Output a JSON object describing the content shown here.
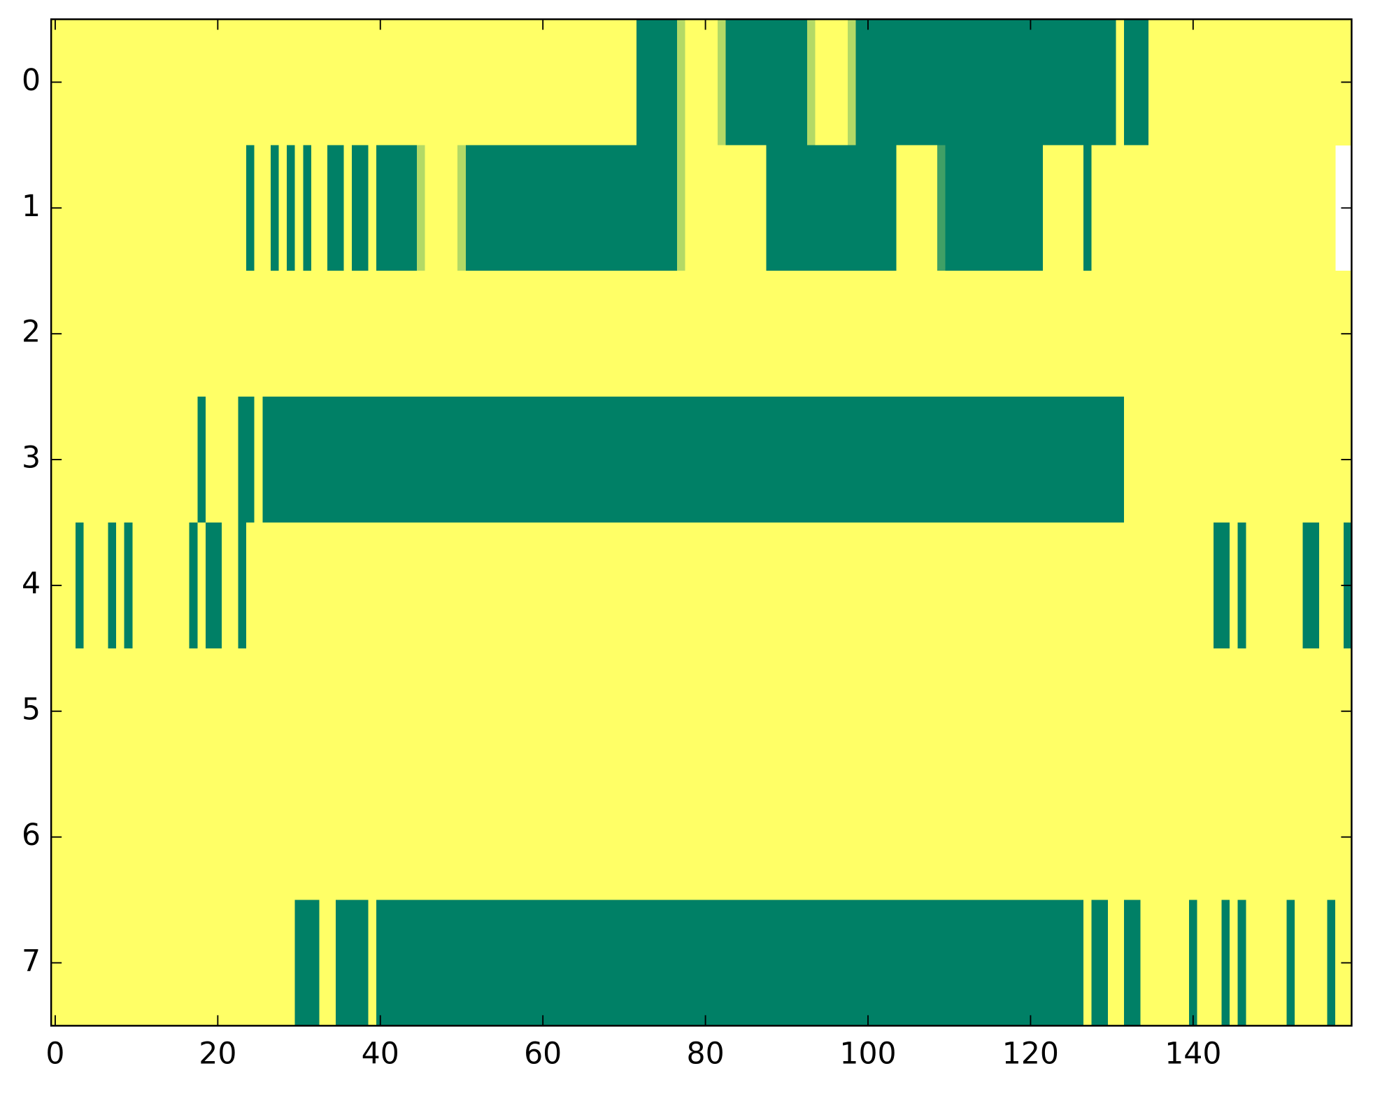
{
  "chart_data": {
    "type": "heatmap",
    "xlim": [
      -0.5,
      159.5
    ],
    "ylim": [
      7.5,
      -0.5
    ],
    "xticks": [
      0,
      20,
      40,
      60,
      80,
      100,
      120,
      140
    ],
    "yticks": [
      0,
      1,
      2,
      3,
      4,
      5,
      6,
      7
    ],
    "cmap": [
      "#ffff66",
      "#008066"
    ],
    "clim": [
      0,
      1
    ],
    "values": [
      [
        0,
        0,
        0,
        0,
        0,
        0,
        0,
        0,
        0,
        0,
        0,
        0,
        0,
        0,
        0,
        0,
        0,
        0,
        0,
        0,
        0,
        0,
        0,
        0,
        0,
        0,
        0,
        0,
        0,
        0,
        0,
        0,
        0,
        0,
        0,
        0,
        0,
        0,
        0,
        0,
        0,
        0,
        0,
        0,
        0,
        0,
        0,
        0,
        0,
        0,
        0,
        0,
        0,
        0,
        0,
        0,
        0,
        0,
        0,
        0,
        0,
        0,
        0,
        0,
        0,
        0,
        0,
        0,
        0,
        0,
        0,
        0,
        1,
        1,
        1,
        1,
        1,
        0.3,
        0,
        0,
        0,
        0,
        0.3,
        1,
        1,
        1,
        1,
        1,
        1,
        1,
        1,
        1,
        1,
        0.3,
        0,
        0,
        0,
        0,
        0.3,
        1,
        1,
        1,
        1,
        1,
        1,
        1,
        1,
        1,
        1,
        1,
        1,
        1,
        1,
        1,
        1,
        1,
        1,
        1,
        1,
        1,
        1,
        1,
        1,
        1,
        1,
        1,
        1,
        1,
        1,
        1,
        1,
        0,
        1,
        1,
        1,
        0,
        0,
        0,
        0,
        0,
        0,
        0,
        0,
        0,
        0,
        0,
        0,
        0,
        0,
        0,
        0,
        0,
        0,
        0,
        0,
        0,
        0,
        0,
        0,
        0
      ],
      [
        0,
        0,
        0,
        0,
        0,
        0,
        0,
        0,
        0,
        0,
        0,
        0,
        0,
        0,
        0,
        0,
        0,
        0,
        0,
        0,
        0,
        0,
        0,
        0,
        1,
        0,
        0,
        1,
        0,
        1,
        0,
        1,
        0,
        0,
        1,
        1,
        0,
        1,
        1,
        0,
        1,
        1,
        1,
        1,
        1,
        0.3,
        0,
        0,
        0,
        0,
        0.3,
        1,
        1,
        1,
        1,
        1,
        1,
        1,
        1,
        1,
        1,
        1,
        1,
        1,
        1,
        1,
        1,
        1,
        1,
        1,
        1,
        1,
        1,
        1,
        1,
        1,
        1,
        0.3,
        0,
        0,
        0,
        0,
        0,
        0,
        0,
        0,
        0,
        0,
        1,
        1,
        1,
        1,
        1,
        1,
        1,
        1,
        1,
        1,
        1,
        1,
        1,
        1,
        1,
        1,
        0,
        0,
        0,
        0,
        0,
        0.75,
        1,
        1,
        1,
        1,
        1,
        1,
        1,
        1,
        1,
        1,
        1,
        1,
        0,
        0,
        0,
        0,
        0,
        1,
        0,
        0,
        0,
        0,
        0,
        0,
        0,
        0,
        0,
        0,
        0,
        0,
        0,
        0,
        0,
        0,
        0,
        0,
        0,
        0,
        0,
        0,
        0,
        0,
        0,
        0,
        0,
        0,
        0,
        0
      ],
      [
        0,
        0,
        0,
        0,
        0,
        0,
        0,
        0,
        0,
        0,
        0,
        0,
        0,
        0,
        0,
        0,
        0,
        0,
        0,
        0,
        0,
        0,
        0,
        0,
        0,
        0,
        0,
        0,
        0,
        0,
        0,
        0,
        0,
        0,
        0,
        0,
        0,
        0,
        0,
        0,
        0,
        0,
        0,
        0,
        0,
        0,
        0,
        0,
        0,
        0,
        0,
        0,
        0,
        0,
        0,
        0,
        0,
        0,
        0,
        0,
        0,
        0,
        0,
        0,
        0,
        0,
        0,
        0,
        0,
        0,
        0,
        0,
        0,
        0,
        0,
        0,
        0,
        0,
        0,
        0,
        0,
        0,
        0,
        0,
        0,
        0,
        0,
        0,
        0,
        0,
        0,
        0,
        0,
        0,
        0,
        0,
        0,
        0,
        0,
        0,
        0,
        0,
        0,
        0,
        0,
        0,
        0,
        0,
        0,
        0,
        0,
        0,
        0,
        0,
        0,
        0,
        0,
        0,
        0,
        0,
        0,
        0,
        0,
        0,
        0,
        0,
        0,
        0,
        0,
        0,
        0,
        0,
        0,
        0,
        0,
        0,
        0,
        0,
        0,
        0,
        0,
        0,
        0,
        0,
        0,
        0,
        0,
        0,
        0,
        0,
        0,
        0,
        0,
        0,
        0,
        0,
        0,
        0,
        0,
        0
      ],
      [
        0,
        0,
        0,
        0,
        0,
        0,
        0,
        0,
        0,
        0,
        0,
        0,
        0,
        0,
        0,
        0,
        0,
        0,
        1,
        0,
        0,
        0,
        0,
        1,
        1,
        0,
        1,
        1,
        1,
        1,
        1,
        1,
        1,
        1,
        1,
        1,
        1,
        1,
        1,
        1,
        1,
        1,
        1,
        1,
        1,
        1,
        1,
        1,
        1,
        1,
        1,
        1,
        1,
        1,
        1,
        1,
        1,
        1,
        1,
        1,
        1,
        1,
        1,
        1,
        1,
        1,
        1,
        1,
        1,
        1,
        1,
        1,
        1,
        1,
        1,
        1,
        1,
        1,
        1,
        1,
        1,
        1,
        1,
        1,
        1,
        1,
        1,
        1,
        1,
        1,
        1,
        1,
        1,
        1,
        1,
        1,
        1,
        1,
        1,
        1,
        1,
        1,
        1,
        1,
        1,
        1,
        1,
        1,
        1,
        1,
        1,
        1,
        1,
        1,
        1,
        1,
        1,
        1,
        1,
        1,
        1,
        1,
        1,
        1,
        1,
        1,
        1,
        1,
        1,
        1,
        1,
        1,
        0,
        0,
        0,
        0,
        0,
        0,
        0,
        0,
        0,
        0,
        0,
        0,
        0,
        0,
        0,
        0,
        0,
        0,
        0,
        0,
        0,
        0,
        0,
        0,
        0,
        0,
        0,
        0
      ],
      [
        0,
        0,
        0,
        1,
        0,
        0,
        0,
        1,
        0,
        1,
        0,
        0,
        0,
        0,
        0,
        0,
        0,
        1,
        0,
        1,
        1,
        0,
        0,
        1,
        0,
        0,
        0,
        0,
        0,
        0,
        0,
        0,
        0,
        0,
        0,
        0,
        0,
        0,
        0,
        0,
        0,
        0,
        0,
        0,
        0,
        0,
        0,
        0,
        0,
        0,
        0,
        0,
        0,
        0,
        0,
        0,
        0,
        0,
        0,
        0,
        0,
        0,
        0,
        0,
        0,
        0,
        0,
        0,
        0,
        0,
        0,
        0,
        0,
        0,
        0,
        0,
        0,
        0,
        0,
        0,
        0,
        0,
        0,
        0,
        0,
        0,
        0,
        0,
        0,
        0,
        0,
        0,
        0,
        0,
        0,
        0,
        0,
        0,
        0,
        0,
        0,
        0,
        0,
        0,
        0,
        0,
        0,
        0,
        0,
        0,
        0,
        0,
        0,
        0,
        0,
        0,
        0,
        0,
        0,
        0,
        0,
        0,
        0,
        0,
        0,
        0,
        0,
        0,
        0,
        0,
        0,
        0,
        0,
        0,
        0,
        0,
        0,
        0,
        0,
        0,
        0,
        0,
        0,
        1,
        1,
        0,
        1,
        0,
        0,
        0,
        0,
        0,
        0,
        0,
        1,
        1,
        0,
        0,
        0,
        1
      ],
      [
        0,
        0,
        0,
        0,
        0,
        0,
        0,
        0,
        0,
        0,
        0,
        0,
        0,
        0,
        0,
        0,
        0,
        0,
        0,
        0,
        0,
        0,
        0,
        0,
        0,
        0,
        0,
        0,
        0,
        0,
        0,
        0,
        0,
        0,
        0,
        0,
        0,
        0,
        0,
        0,
        0,
        0,
        0,
        0,
        0,
        0,
        0,
        0,
        0,
        0,
        0,
        0,
        0,
        0,
        0,
        0,
        0,
        0,
        0,
        0,
        0,
        0,
        0,
        0,
        0,
        0,
        0,
        0,
        0,
        0,
        0,
        0,
        0,
        0,
        0,
        0,
        0,
        0,
        0,
        0,
        0,
        0,
        0,
        0,
        0,
        0,
        0,
        0,
        0,
        0,
        0,
        0,
        0,
        0,
        0,
        0,
        0,
        0,
        0,
        0,
        0,
        0,
        0,
        0,
        0,
        0,
        0,
        0,
        0,
        0,
        0,
        0,
        0,
        0,
        0,
        0,
        0,
        0,
        0,
        0,
        0,
        0,
        0,
        0,
        0,
        0,
        0,
        0,
        0,
        0,
        0,
        0,
        0,
        0,
        0,
        0,
        0,
        0,
        0,
        0,
        0,
        0,
        0,
        0,
        0,
        0,
        0,
        0,
        0,
        0,
        0,
        0,
        0,
        0,
        0,
        0,
        0,
        0,
        0,
        0
      ],
      [
        0,
        0,
        0,
        0,
        0,
        0,
        0,
        0,
        0,
        0,
        0,
        0,
        0,
        0,
        0,
        0,
        0,
        0,
        0,
        0,
        0,
        0,
        0,
        0,
        0,
        0,
        0,
        0,
        0,
        0,
        0,
        0,
        0,
        0,
        0,
        0,
        0,
        0,
        0,
        0,
        0,
        0,
        0,
        0,
        0,
        0,
        0,
        0,
        0,
        0,
        0,
        0,
        0,
        0,
        0,
        0,
        0,
        0,
        0,
        0,
        0,
        0,
        0,
        0,
        0,
        0,
        0,
        0,
        0,
        0,
        0,
        0,
        0,
        0,
        0,
        0,
        0,
        0,
        0,
        0,
        0,
        0,
        0,
        0,
        0,
        0,
        0,
        0,
        0,
        0,
        0,
        0,
        0,
        0,
        0,
        0,
        0,
        0,
        0,
        0,
        0,
        0,
        0,
        0,
        0,
        0,
        0,
        0,
        0,
        0,
        0,
        0,
        0,
        0,
        0,
        0,
        0,
        0,
        0,
        0,
        0,
        0,
        0,
        0,
        0,
        0,
        0,
        0,
        0,
        0,
        0,
        0,
        0,
        0,
        0,
        0,
        0,
        0,
        0,
        0,
        0,
        0,
        0,
        0,
        0,
        0,
        0,
        0,
        0,
        0,
        0,
        0,
        0,
        0,
        0,
        0,
        0,
        0,
        0,
        0
      ],
      [
        0,
        0,
        0,
        0,
        0,
        0,
        0,
        0,
        0,
        0,
        0,
        0,
        0,
        0,
        0,
        0,
        0,
        0,
        0,
        0,
        0,
        0,
        0,
        0,
        0,
        0,
        0,
        0,
        0,
        0,
        1,
        1,
        1,
        0,
        0,
        1,
        1,
        1,
        1,
        0,
        1,
        1,
        1,
        1,
        1,
        1,
        1,
        1,
        1,
        1,
        1,
        1,
        1,
        1,
        1,
        1,
        1,
        1,
        1,
        1,
        1,
        1,
        1,
        1,
        1,
        1,
        1,
        1,
        1,
        1,
        1,
        1,
        1,
        1,
        1,
        1,
        1,
        1,
        1,
        1,
        1,
        1,
        1,
        1,
        1,
        1,
        1,
        1,
        1,
        1,
        1,
        1,
        1,
        1,
        1,
        1,
        1,
        1,
        1,
        1,
        1,
        1,
        1,
        1,
        1,
        1,
        1,
        1,
        1,
        1,
        1,
        1,
        1,
        1,
        1,
        1,
        1,
        1,
        1,
        1,
        1,
        1,
        1,
        1,
        1,
        1,
        1,
        0,
        1,
        1,
        0,
        0,
        1,
        1,
        0,
        0,
        0,
        0,
        0,
        0,
        1,
        0,
        0,
        0,
        1,
        0,
        1,
        0,
        0,
        0,
        0,
        0,
        1,
        0,
        0,
        0,
        0,
        1,
        0,
        0
      ]
    ]
  }
}
